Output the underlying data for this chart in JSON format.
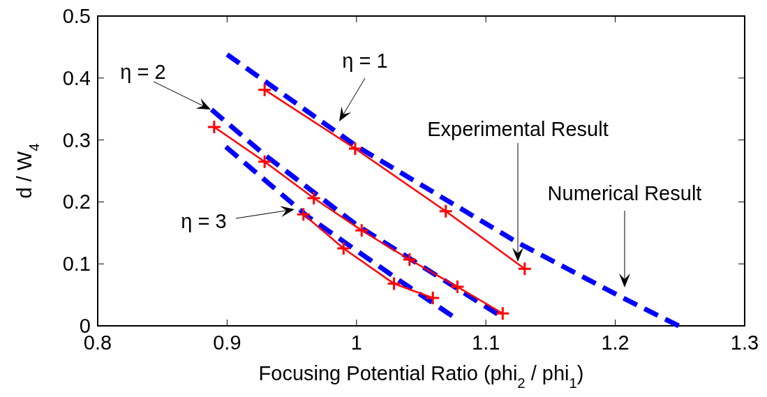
{
  "chart_data": {
    "type": "line",
    "xlabel": "Focusing Potential Ratio (phi$_{2}$ / phi$_{1}$)",
    "ylabel": "d / W$_{4}$",
    "xlim": [
      0.8,
      1.3
    ],
    "xticks": [
      0.8,
      0.9,
      1,
      1.1,
      1.2,
      1.3
    ],
    "ylim": [
      0,
      0.5
    ],
    "yticks": [
      0,
      0.1,
      0.2,
      0.3,
      0.4,
      0.5
    ],
    "grid": false,
    "series": [
      {
        "color": "#0000ff",
        "line_style": "dashed",
        "marker": "none",
        "x": [
          0.9,
          1.0,
          1.124,
          1.206,
          1.249
        ],
        "values": [
          0.438,
          0.29,
          0.135,
          0.045,
          0
        ]
      },
      {
        "color": "#0000ff",
        "line_style": "dashed",
        "marker": "none",
        "x": [
          0.888,
          0.929,
          1.0,
          1.109
        ],
        "values": [
          0.349,
          0.276,
          0.163,
          0.019
        ]
      },
      {
        "color": "#0000ff",
        "line_style": "dashed",
        "marker": "none",
        "x": [
          0.899,
          0.962,
          1.034,
          1.074
        ],
        "values": [
          0.289,
          0.177,
          0.072,
          0.016
        ]
      },
      {
        "color": "#ff0000",
        "line_style": "solid",
        "marker": "cross",
        "x": [
          0.929,
          0.999,
          1.069,
          1.13
        ],
        "values": [
          0.381,
          0.286,
          0.185,
          0.092
        ]
      },
      {
        "color": "#ff0000",
        "line_style": "solid",
        "marker": "cross",
        "x": [
          0.89,
          0.929,
          0.967,
          1.004,
          1.041,
          1.078,
          1.113
        ],
        "values": [
          0.321,
          0.265,
          0.206,
          0.154,
          0.107,
          0.063,
          0.02
        ]
      },
      {
        "color": "#ff0000",
        "line_style": "solid",
        "marker": "cross",
        "x": [
          0.959,
          0.99,
          1.029,
          1.059
        ],
        "values": [
          0.18,
          0.125,
          0.068,
          0.045
        ]
      }
    ],
    "annotations": [
      "η = 1",
      "η = 2",
      "η = 3",
      "Experimental Result",
      "Numerical Result"
    ]
  }
}
